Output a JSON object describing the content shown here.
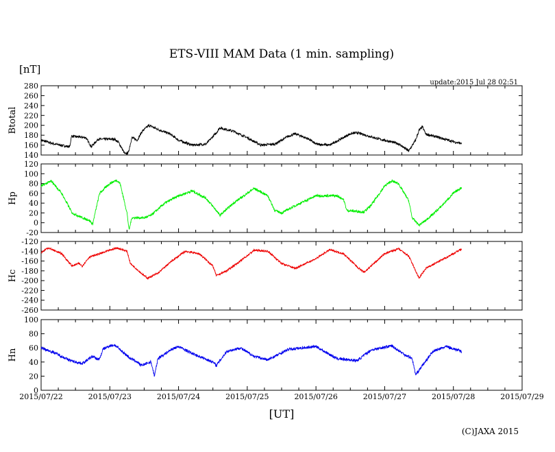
{
  "chart_data": {
    "type": "line",
    "title": "ETS-VIII MAM Data (1 min. sampling)",
    "unit_label": "[nT]",
    "update_text": "update:2015 Jul 28 02:51",
    "xlabel": "[UT]",
    "copyright": "(C)JAXA 2015",
    "x_ticks": [
      "2015/07/22",
      "2015/07/23",
      "2015/07/24",
      "2015/07/25",
      "2015/07/26",
      "2015/07/27",
      "2015/07/28",
      "2015/07/29"
    ],
    "x_range_days": [
      0,
      7
    ],
    "panels": [
      {
        "name": "Btotal",
        "color": "#000000",
        "ylim": [
          140,
          280
        ],
        "yticks": [
          "280",
          "260",
          "240",
          "220",
          "200",
          "180",
          "160",
          "140"
        ],
        "noise": 2.5,
        "days": [
          0,
          0.2,
          0.4,
          0.42,
          0.44,
          0.65,
          0.73,
          0.83,
          1.07,
          1.13,
          1.22,
          1.27,
          1.32,
          1.4,
          1.47,
          1.57,
          1.73,
          1.87,
          2.0,
          2.2,
          2.4,
          2.55,
          2.6,
          2.8,
          3.0,
          3.2,
          3.4,
          3.6,
          3.7,
          3.9,
          4.0,
          4.2,
          4.5,
          4.6,
          4.9,
          5.2,
          5.35,
          5.45,
          5.5,
          5.55,
          5.6,
          5.8,
          6.0,
          6.12
        ],
        "values": [
          170,
          162,
          157,
          158,
          178,
          175,
          157,
          172,
          172,
          165,
          142,
          145,
          175,
          170,
          188,
          200,
          190,
          183,
          170,
          160,
          162,
          185,
          195,
          188,
          175,
          160,
          162,
          178,
          183,
          172,
          162,
          160,
          183,
          185,
          173,
          163,
          148,
          170,
          190,
          197,
          182,
          175,
          167,
          163
        ]
      },
      {
        "name": "Hp",
        "color": "#00ee00",
        "ylim": [
          -20,
          120
        ],
        "yticks": [
          "120",
          "100",
          "80",
          "60",
          "40",
          "20",
          "0",
          "-20"
        ],
        "noise": 2.5,
        "days": [
          0,
          0.15,
          0.3,
          0.45,
          0.6,
          0.7,
          0.75,
          0.85,
          1.0,
          1.1,
          1.15,
          1.25,
          1.28,
          1.32,
          1.5,
          1.6,
          1.8,
          2.0,
          2.2,
          2.4,
          2.55,
          2.6,
          2.8,
          3.0,
          3.1,
          3.3,
          3.4,
          3.5,
          3.7,
          4.0,
          4.3,
          4.4,
          4.45,
          4.7,
          4.8,
          5.0,
          5.1,
          5.2,
          5.35,
          5.4,
          5.5,
          5.6,
          5.8,
          6.0,
          6.12
        ],
        "values": [
          75,
          85,
          60,
          20,
          10,
          5,
          -3,
          60,
          80,
          87,
          80,
          20,
          -15,
          10,
          10,
          15,
          40,
          55,
          65,
          50,
          25,
          15,
          40,
          60,
          70,
          55,
          25,
          20,
          35,
          55,
          55,
          48,
          25,
          22,
          35,
          75,
          85,
          80,
          45,
          10,
          -5,
          5,
          30,
          60,
          72
        ]
      },
      {
        "name": "Hc",
        "color": "#ee0000",
        "ylim": [
          -260,
          -120
        ],
        "yticks": [
          "-120",
          "-140",
          "-160",
          "-180",
          "-200",
          "-220",
          "-240",
          "-260"
        ],
        "noise": 2,
        "days": [
          0,
          0.1,
          0.3,
          0.45,
          0.55,
          0.6,
          0.7,
          0.9,
          1.1,
          1.25,
          1.3,
          1.5,
          1.55,
          1.7,
          1.9,
          2.1,
          2.3,
          2.5,
          2.55,
          2.7,
          2.9,
          3.1,
          3.3,
          3.5,
          3.7,
          4.0,
          4.2,
          4.4,
          4.6,
          4.7,
          5.0,
          5.2,
          5.35,
          5.45,
          5.5,
          5.6,
          5.8,
          6.0,
          6.12
        ],
        "values": [
          -143,
          -133,
          -145,
          -170,
          -165,
          -170,
          -152,
          -143,
          -133,
          -140,
          -165,
          -190,
          -195,
          -185,
          -160,
          -140,
          -145,
          -170,
          -190,
          -180,
          -160,
          -138,
          -140,
          -165,
          -175,
          -155,
          -137,
          -145,
          -172,
          -183,
          -145,
          -135,
          -150,
          -180,
          -195,
          -175,
          -160,
          -145,
          -135
        ]
      },
      {
        "name": "Hn",
        "color": "#0000ee",
        "ylim": [
          0,
          100
        ],
        "yticks": [
          "100",
          "80",
          "60",
          "40",
          "20",
          "0"
        ],
        "noise": 2,
        "days": [
          0,
          0.2,
          0.4,
          0.5,
          0.6,
          0.75,
          0.8,
          0.85,
          0.9,
          1.0,
          1.07,
          1.3,
          1.4,
          1.45,
          1.6,
          1.65,
          1.7,
          1.9,
          2.0,
          2.2,
          2.5,
          2.55,
          2.7,
          2.9,
          3.1,
          3.3,
          3.6,
          4.0,
          4.3,
          4.6,
          4.8,
          5.1,
          5.3,
          5.4,
          5.45,
          5.55,
          5.7,
          5.9,
          6.12
        ],
        "values": [
          60,
          53,
          43,
          40,
          38,
          48,
          45,
          44,
          58,
          63,
          64,
          45,
          40,
          35,
          40,
          20,
          45,
          58,
          62,
          52,
          40,
          35,
          55,
          60,
          48,
          43,
          58,
          62,
          45,
          42,
          57,
          63,
          50,
          45,
          22,
          35,
          55,
          62,
          55
        ]
      }
    ]
  }
}
